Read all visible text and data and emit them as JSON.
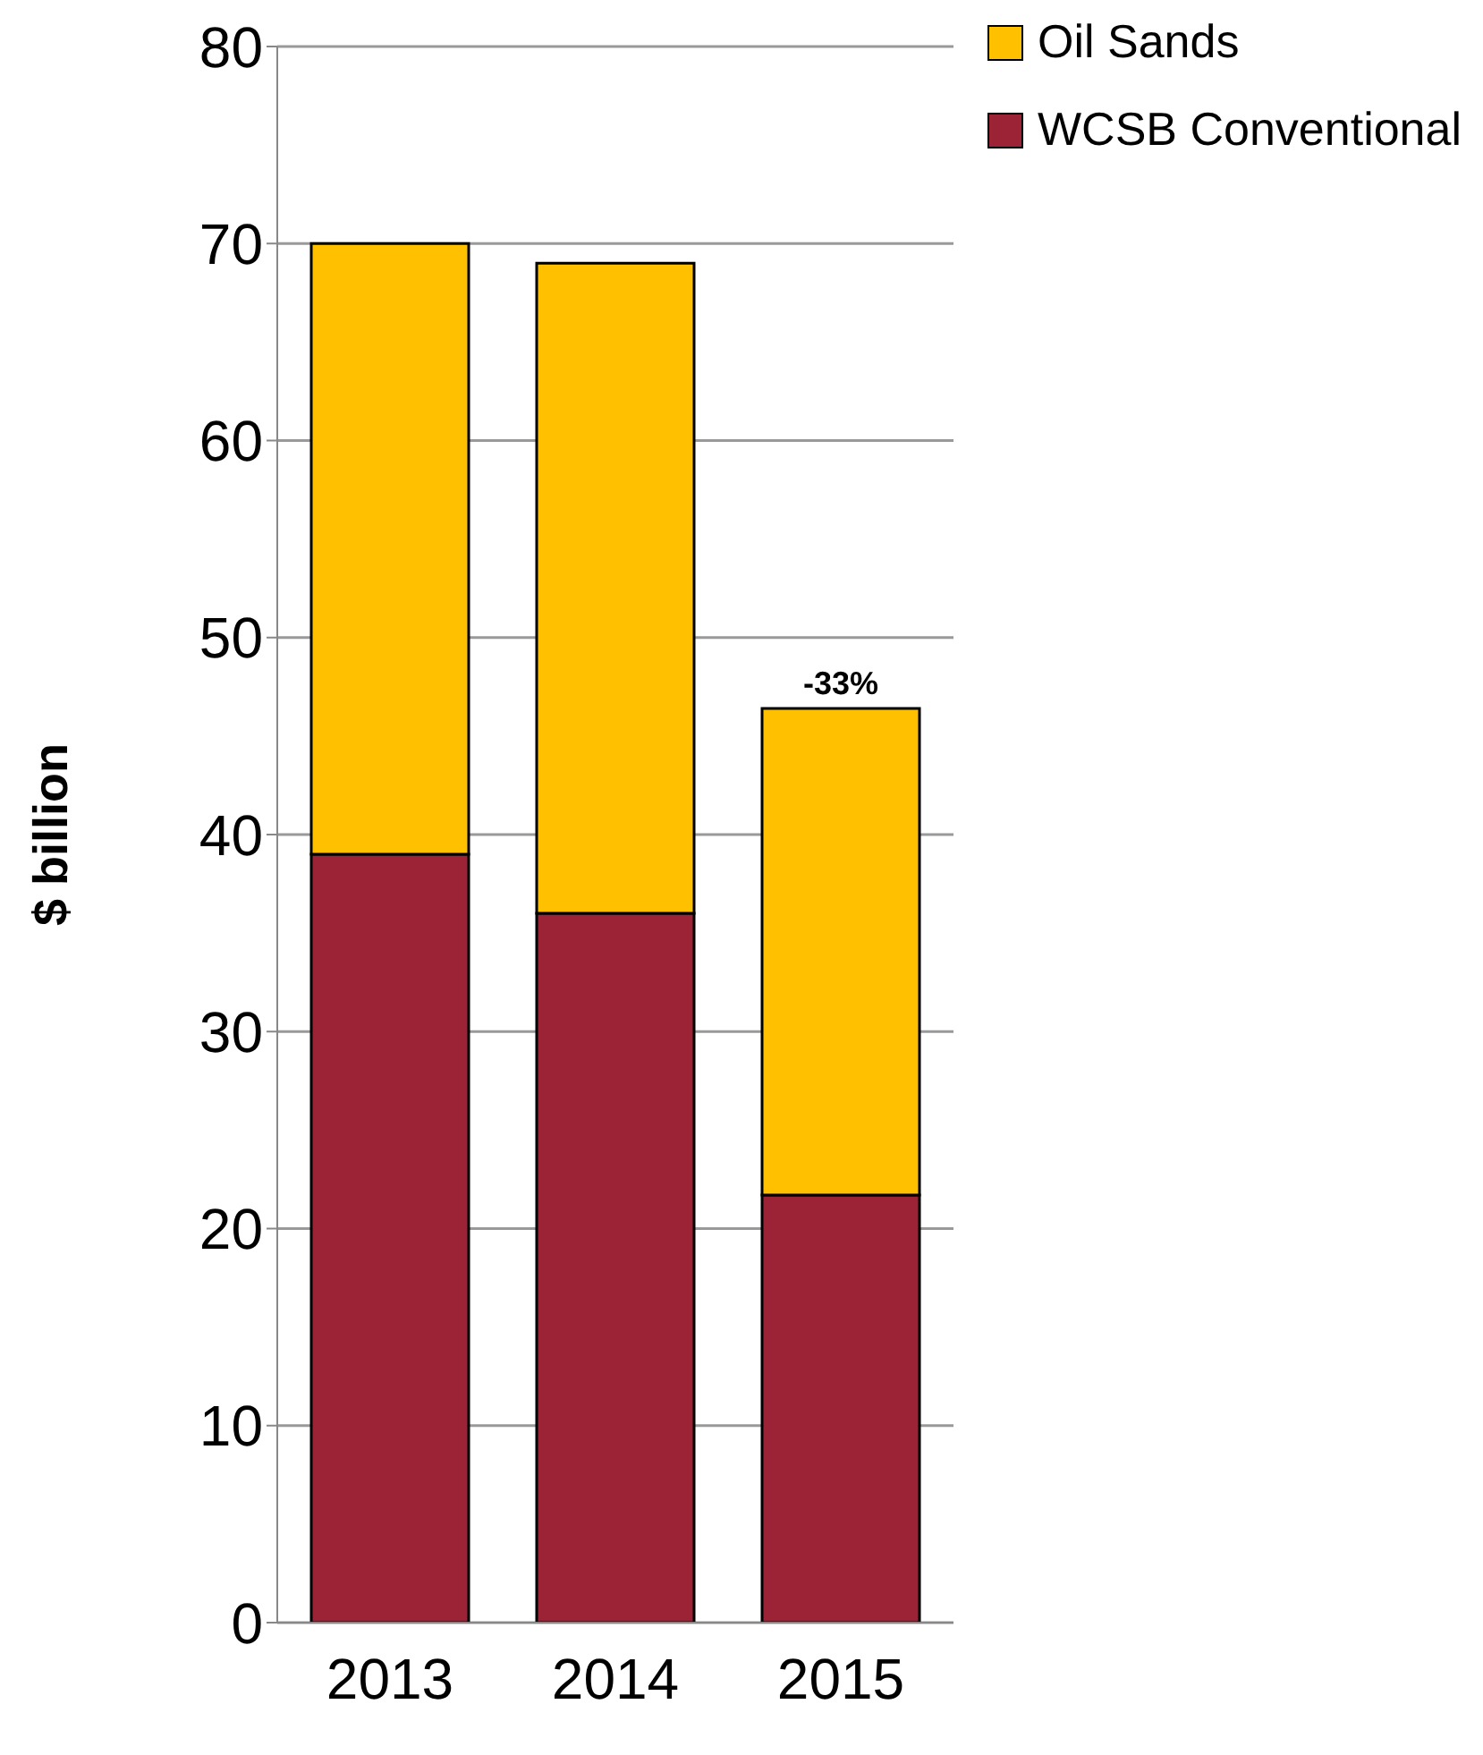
{
  "chart_data": {
    "type": "bar",
    "stacked": true,
    "ylabel": "$ billion",
    "categories": [
      "2013",
      "2014",
      "2015"
    ],
    "series": [
      {
        "name": "WCSB Conventional",
        "color": "#9b2335",
        "values": [
          39,
          36,
          21.7
        ]
      },
      {
        "name": "Oil Sands",
        "color": "#ffc000",
        "values": [
          31,
          33,
          24.7
        ]
      }
    ],
    "ylim": [
      0,
      80
    ],
    "yticks": [
      0,
      10,
      20,
      30,
      40,
      50,
      60,
      70,
      80
    ],
    "grid": "y",
    "legend": "top right",
    "annotations": [
      {
        "text": "-33%",
        "x": "2015",
        "y": 46.4
      }
    ]
  }
}
